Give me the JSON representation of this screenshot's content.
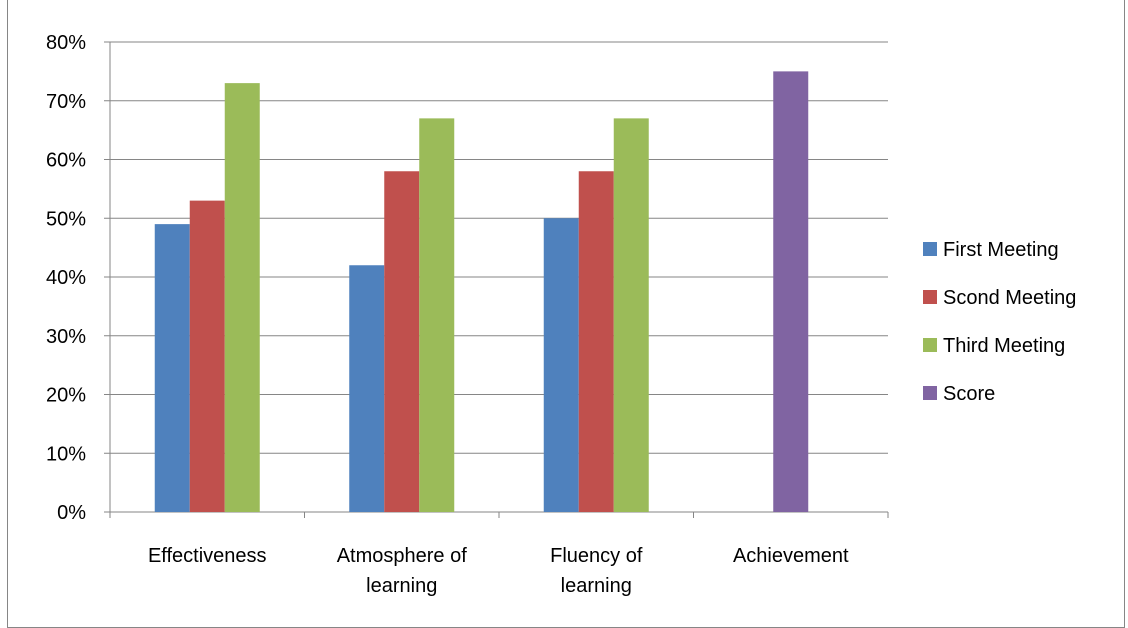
{
  "chart_data": {
    "type": "bar",
    "categories": [
      [
        "Effectiveness"
      ],
      [
        "Atmosphere of",
        "learning"
      ],
      [
        "Fluency of",
        "learning"
      ],
      [
        "Achievement"
      ]
    ],
    "series": [
      {
        "name": "First Meeting",
        "color": "#4f81bd",
        "values": [
          49,
          42,
          50,
          null
        ]
      },
      {
        "name": "Scond Meeting",
        "color": "#c0504d",
        "values": [
          53,
          58,
          58,
          null
        ]
      },
      {
        "name": "Third Meeting",
        "color": "#9bbb59",
        "values": [
          73,
          67,
          67,
          null
        ]
      },
      {
        "name": "Score",
        "color": "#8064a2",
        "values": [
          null,
          null,
          null,
          75
        ]
      }
    ],
    "ylim": [
      0,
      80
    ],
    "yticks": [
      0,
      10,
      20,
      30,
      40,
      50,
      60,
      70,
      80
    ],
    "ytick_labels": [
      "0%",
      "10%",
      "20%",
      "30%",
      "40%",
      "50%",
      "60%",
      "70%",
      "80%"
    ],
    "grid": true,
    "legend_position": "right",
    "xlabel": "",
    "ylabel": ""
  }
}
